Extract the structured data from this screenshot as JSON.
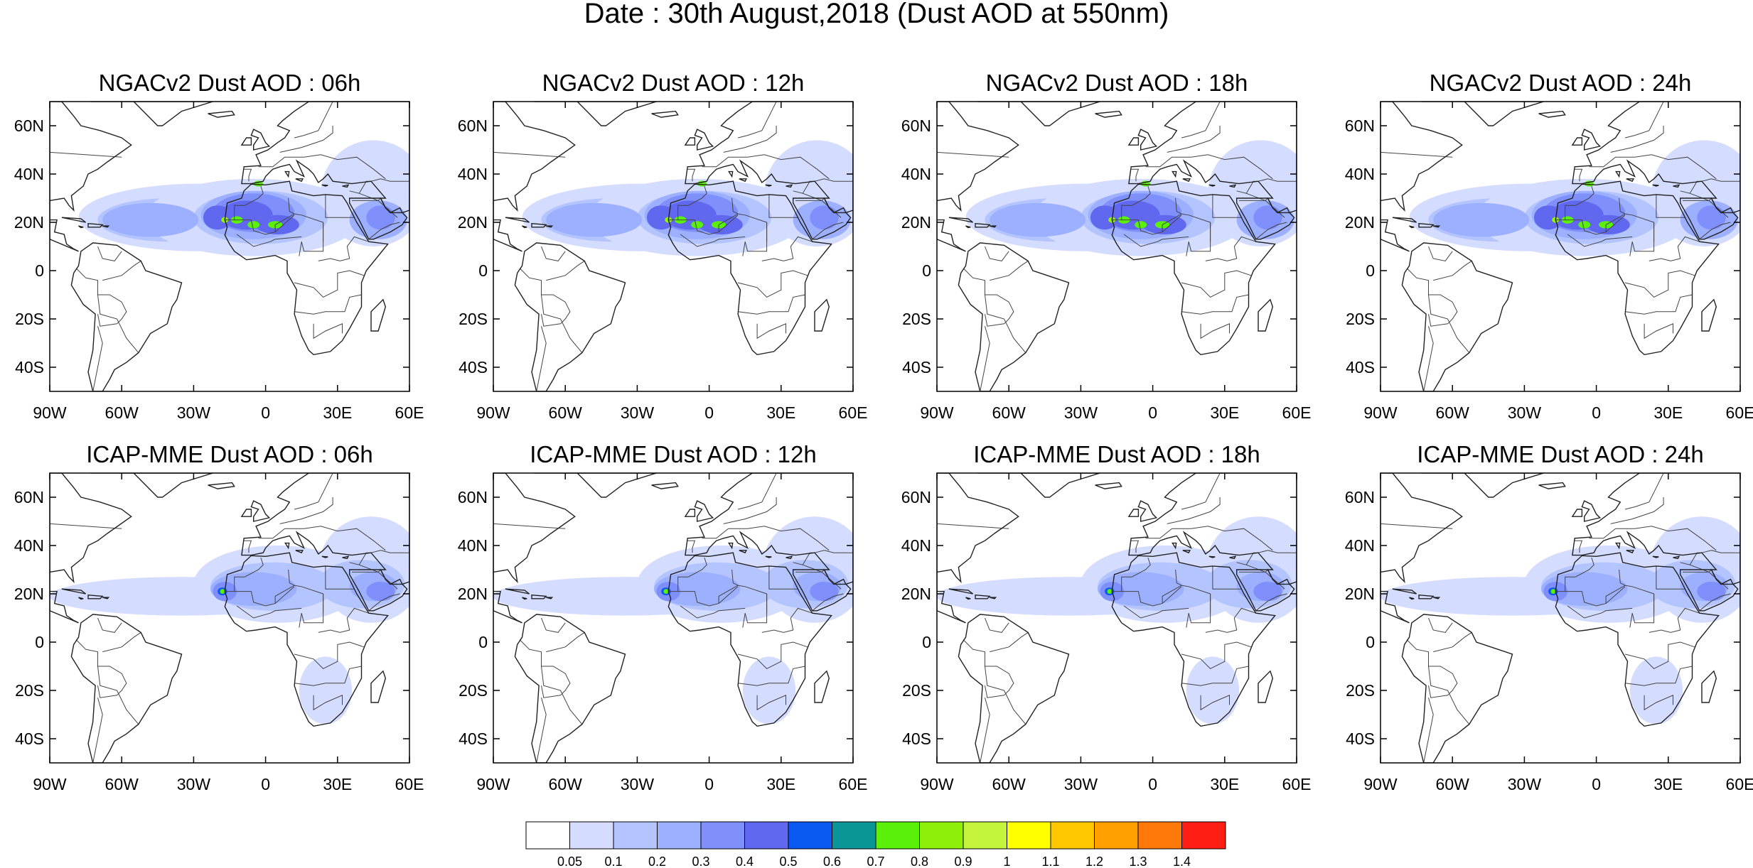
{
  "figure": {
    "title": "Date : 30th August,2018 (Dust AOD at 550nm)"
  },
  "panels": [
    {
      "title": "NGACv2 Dust AOD : 06h",
      "model": "NGACv2",
      "hour": "06h"
    },
    {
      "title": "NGACv2 Dust AOD : 12h",
      "model": "NGACv2",
      "hour": "12h"
    },
    {
      "title": "NGACv2 Dust AOD : 18h",
      "model": "NGACv2",
      "hour": "18h"
    },
    {
      "title": "NGACv2 Dust AOD : 24h",
      "model": "NGACv2",
      "hour": "24h"
    },
    {
      "title": "ICAP-MME Dust AOD : 06h",
      "model": "ICAP-MME",
      "hour": "06h"
    },
    {
      "title": "ICAP-MME Dust AOD : 12h",
      "model": "ICAP-MME",
      "hour": "12h"
    },
    {
      "title": "ICAP-MME Dust AOD : 18h",
      "model": "ICAP-MME",
      "hour": "18h"
    },
    {
      "title": "ICAP-MME Dust AOD : 24h",
      "model": "ICAP-MME",
      "hour": "24h"
    }
  ],
  "map_extent": {
    "lon": [
      -90,
      60
    ],
    "lat": [
      -50,
      70
    ]
  },
  "x_ticks": [
    {
      "value": -90,
      "label": "90W"
    },
    {
      "value": -60,
      "label": "60W"
    },
    {
      "value": -30,
      "label": "30W"
    },
    {
      "value": 0,
      "label": "0"
    },
    {
      "value": 30,
      "label": "30E"
    },
    {
      "value": 60,
      "label": "60E"
    }
  ],
  "y_ticks": [
    {
      "value": 60,
      "label": "60N"
    },
    {
      "value": 40,
      "label": "40N"
    },
    {
      "value": 20,
      "label": "20N"
    },
    {
      "value": 0,
      "label": "0"
    },
    {
      "value": -20,
      "label": "20S"
    },
    {
      "value": -40,
      "label": "40S"
    }
  ],
  "colorbar": {
    "colors": [
      "#ffffff",
      "#d4dcff",
      "#b4c4ff",
      "#9cb0ff",
      "#7f8ffc",
      "#6168f0",
      "#0a59f0",
      "#0a9696",
      "#5af00a",
      "#8ef00a",
      "#c4f53c",
      "#ffff00",
      "#ffc800",
      "#ffa000",
      "#ff780a",
      "#ff1e14"
    ],
    "labels": [
      "0.05",
      "0.1",
      "0.2",
      "0.3",
      "0.4",
      "0.5",
      "0.6",
      "0.7",
      "0.8",
      "0.9",
      "1",
      "1.1",
      "1.2",
      "1.3",
      "1.4"
    ]
  },
  "chart_data": {
    "type": "heatmap",
    "variable": "Dust AOD at 550nm",
    "date": "30th August,2018",
    "lon_range": [
      -90,
      60
    ],
    "lat_range": [
      -50,
      70
    ],
    "contour_levels": [
      0.05,
      0.1,
      0.2,
      0.3,
      0.4,
      0.5,
      0.6,
      0.7,
      0.8,
      0.9,
      1,
      1.1,
      1.2,
      1.3,
      1.4
    ],
    "ngac_approx_dust_features": [
      {
        "region": "Sahara / West Africa",
        "lon_range": [
          -18,
          15
        ],
        "lat_range": [
          12,
          30
        ],
        "aod_range": [
          0.5,
          0.8
        ]
      },
      {
        "region": "Tropical North Atlantic plume",
        "lon_range": [
          -60,
          -18
        ],
        "lat_range": [
          8,
          30
        ],
        "aod_range": [
          0.1,
          0.5
        ]
      },
      {
        "region": "Arabian Peninsula",
        "lon_range": [
          35,
          60
        ],
        "lat_range": [
          12,
          30
        ],
        "aod_range": [
          0.3,
          0.5
        ]
      }
    ],
    "icap_approx_dust_features": [
      {
        "region": "West African coast",
        "lon_range": [
          -20,
          -12
        ],
        "lat_range": [
          18,
          24
        ],
        "aod_range": [
          0.5,
          0.8
        ]
      },
      {
        "region": "Sahara / Sahel",
        "lon_range": [
          -15,
          30
        ],
        "lat_range": [
          12,
          30
        ],
        "aod_range": [
          0.2,
          0.4
        ]
      },
      {
        "region": "Tropical North Atlantic plume",
        "lon_range": [
          -88,
          -20
        ],
        "lat_range": [
          10,
          26
        ],
        "aod_range": [
          0.1,
          0.2
        ]
      },
      {
        "region": "Arabian Peninsula",
        "lon_range": [
          35,
          60
        ],
        "lat_range": [
          12,
          32
        ],
        "aod_range": [
          0.2,
          0.4
        ]
      }
    ]
  }
}
